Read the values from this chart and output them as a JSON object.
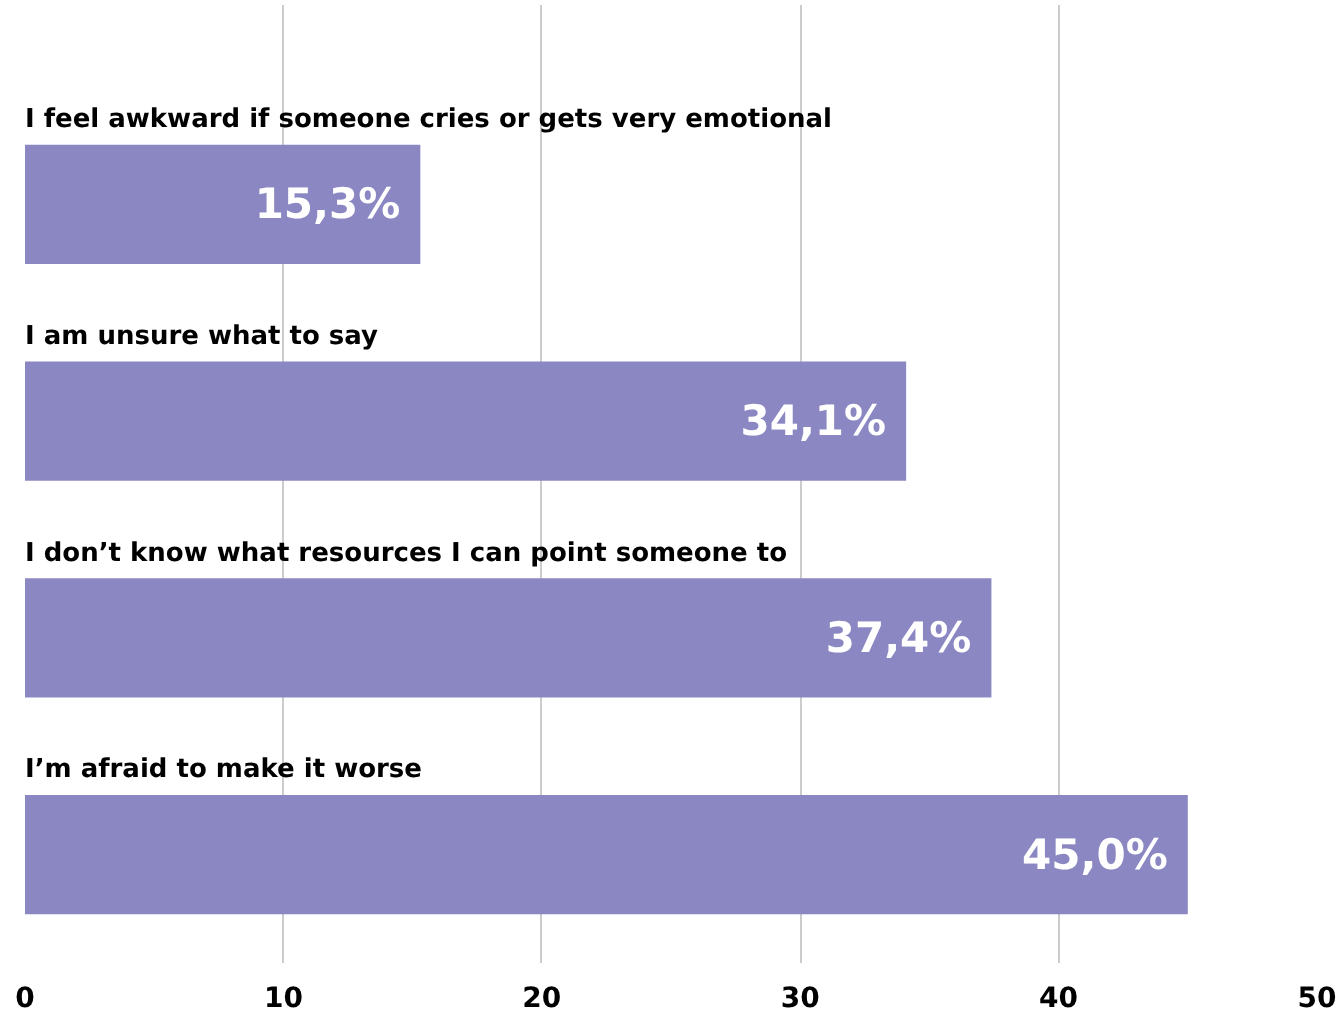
{
  "chart_data": {
    "type": "bar",
    "orientation": "horizontal",
    "categories": [
      "I feel awkward if someone cries or gets very emotional",
      "I am unsure what to say",
      "I don’t know what resources I can point someone to",
      "I’m afraid to make it worse"
    ],
    "values": [
      15.3,
      34.1,
      37.4,
      45.0
    ],
    "value_labels": [
      "15,3%",
      "34,1%",
      "37,4%",
      "45,0%"
    ],
    "color": "#8a87c2",
    "xlim": [
      0,
      50
    ],
    "xticks": [
      0,
      10,
      20,
      30,
      40,
      50
    ],
    "grid": "x"
  }
}
